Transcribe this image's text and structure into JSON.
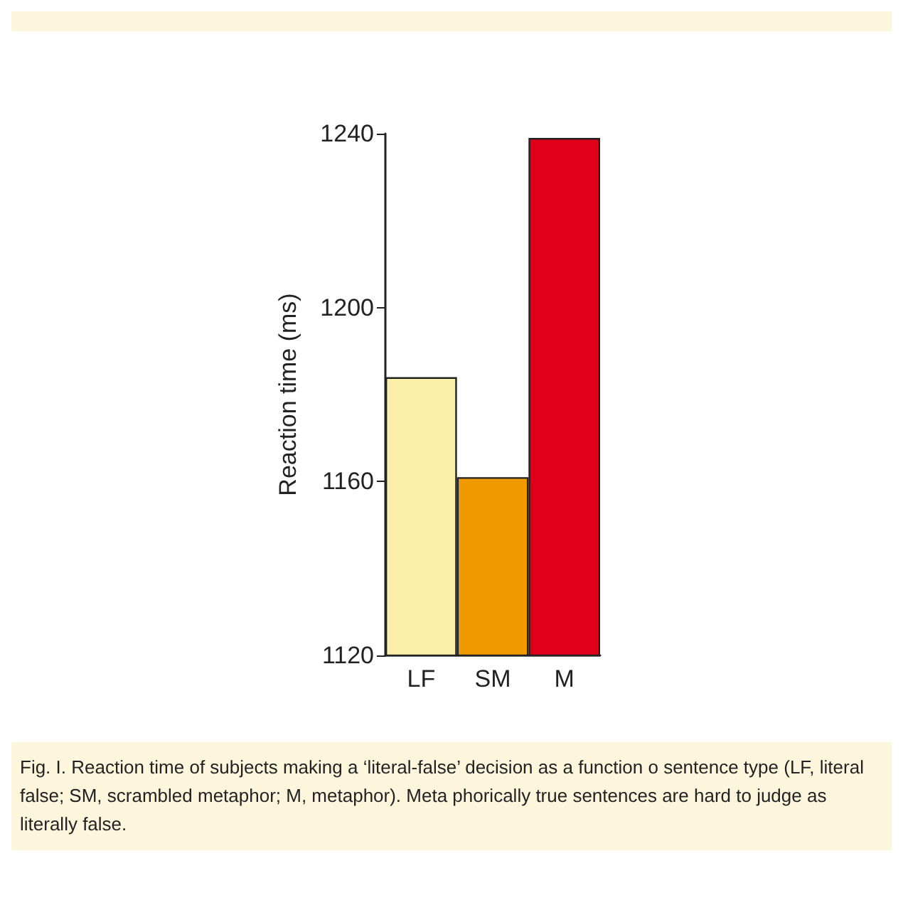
{
  "chart_data": {
    "type": "bar",
    "ylabel": "Reaction time (ms)",
    "categories": [
      "LF",
      "SM",
      "M"
    ],
    "values": [
      1184,
      1161,
      1239
    ],
    "colors": [
      "#faf0a8",
      "#f09a00",
      "#e0001a"
    ],
    "ylim": [
      1120,
      1240
    ],
    "yticks": [
      1120,
      1160,
      1200,
      1240
    ],
    "annotations": [
      "Fig. I. Reaction time of subjects making a ‘literal-false’ decision as a function o sentence type (LF, literal false; SM, scrambled metaphor; M, metaphor). Meta phorically true sentences are hard to judge as literally false."
    ]
  }
}
